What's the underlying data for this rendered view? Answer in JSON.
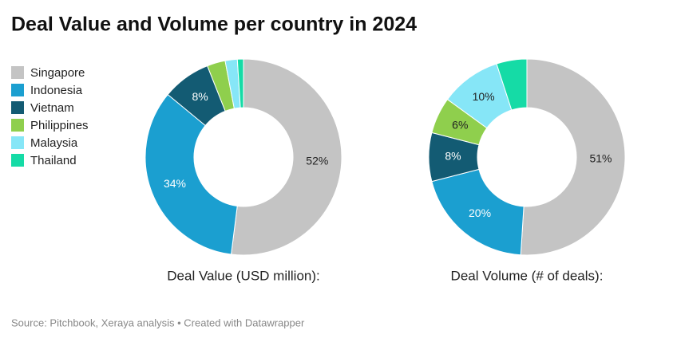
{
  "title": "Deal Value and Volume per country in 2024",
  "source": "Source: Pitchbook, Xeraya analysis • Created with Datawrapper",
  "chart_data": [
    {
      "type": "pie",
      "title": "Deal Value (USD million):",
      "categories": [
        "Singapore",
        "Indonesia",
        "Vietnam",
        "Philippines",
        "Malaysia",
        "Thailand"
      ],
      "colors": [
        "#c4c4c4",
        "#1b9fd0",
        "#135b73",
        "#8fcf4d",
        "#86e6f7",
        "#15dba6"
      ],
      "values": [
        52,
        34,
        8,
        3,
        2,
        1
      ],
      "value_labels": [
        "52%",
        "34%",
        "8%",
        null,
        null,
        null
      ]
    },
    {
      "type": "pie",
      "title": "Deal Volume (# of deals):",
      "categories": [
        "Singapore",
        "Indonesia",
        "Vietnam",
        "Philippines",
        "Malaysia",
        "Thailand"
      ],
      "colors": [
        "#c4c4c4",
        "#1b9fd0",
        "#135b73",
        "#8fcf4d",
        "#86e6f7",
        "#15dba6"
      ],
      "values": [
        51,
        20,
        8,
        6,
        10,
        5
      ],
      "value_labels": [
        "51%",
        "20%",
        "8%",
        "6%",
        "10%",
        null
      ]
    }
  ]
}
